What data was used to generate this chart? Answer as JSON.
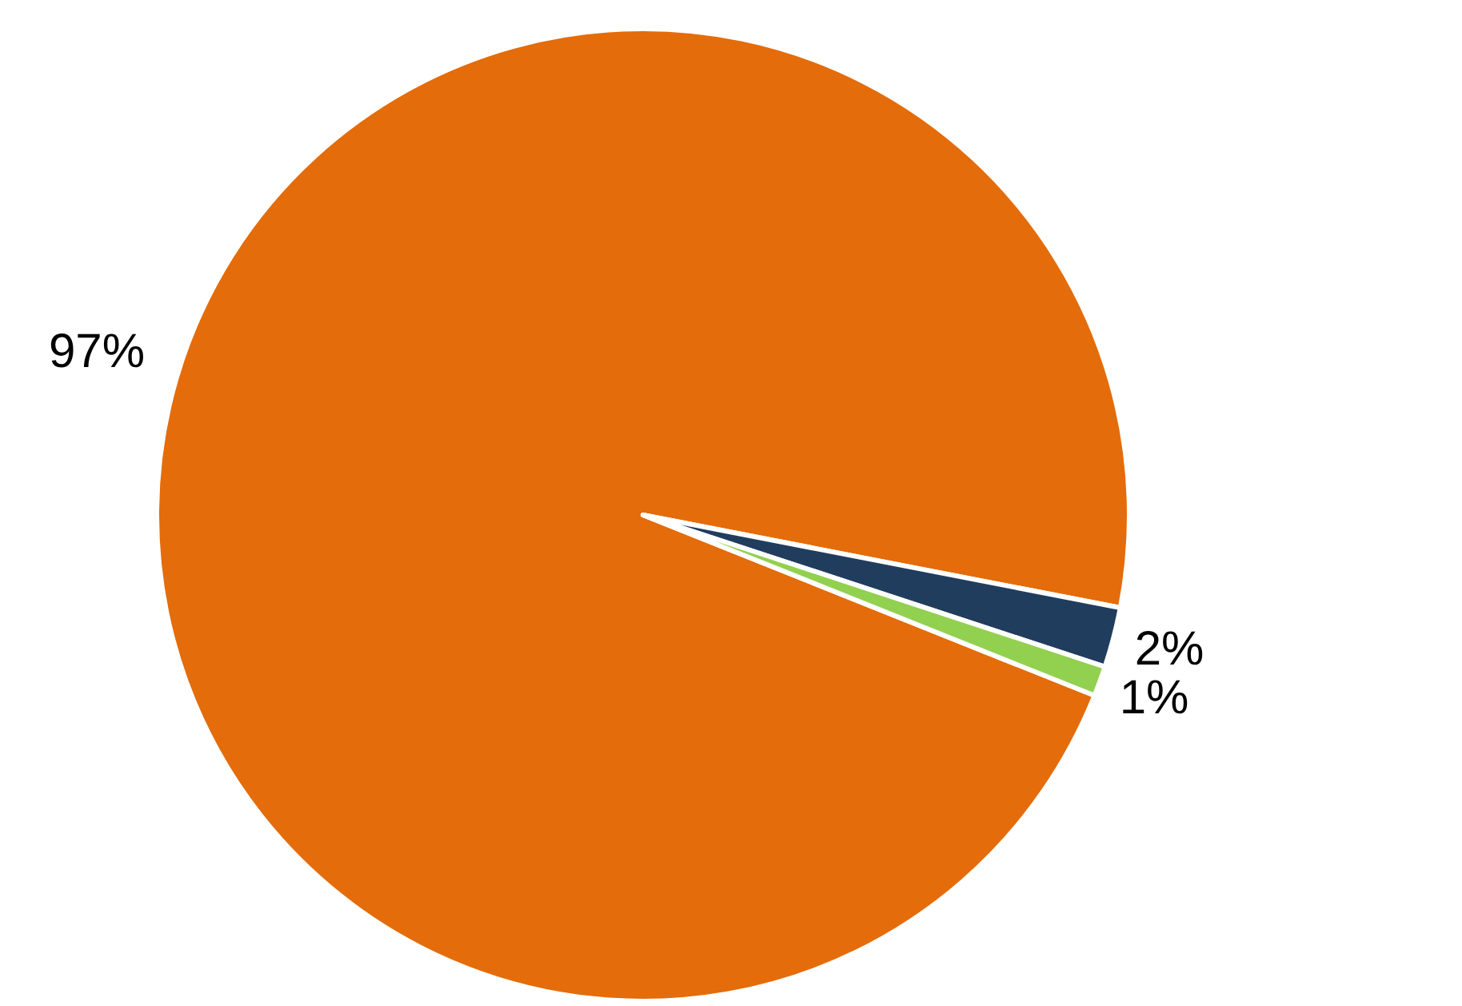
{
  "chart_data": {
    "type": "pie",
    "categories": [
      null,
      null,
      null
    ],
    "values": [
      97,
      2,
      1
    ],
    "colors": [
      "#e46c0a",
      "#213d5e",
      "#92d050"
    ],
    "value_labels": [
      "97%",
      "2%",
      "1%"
    ]
  }
}
